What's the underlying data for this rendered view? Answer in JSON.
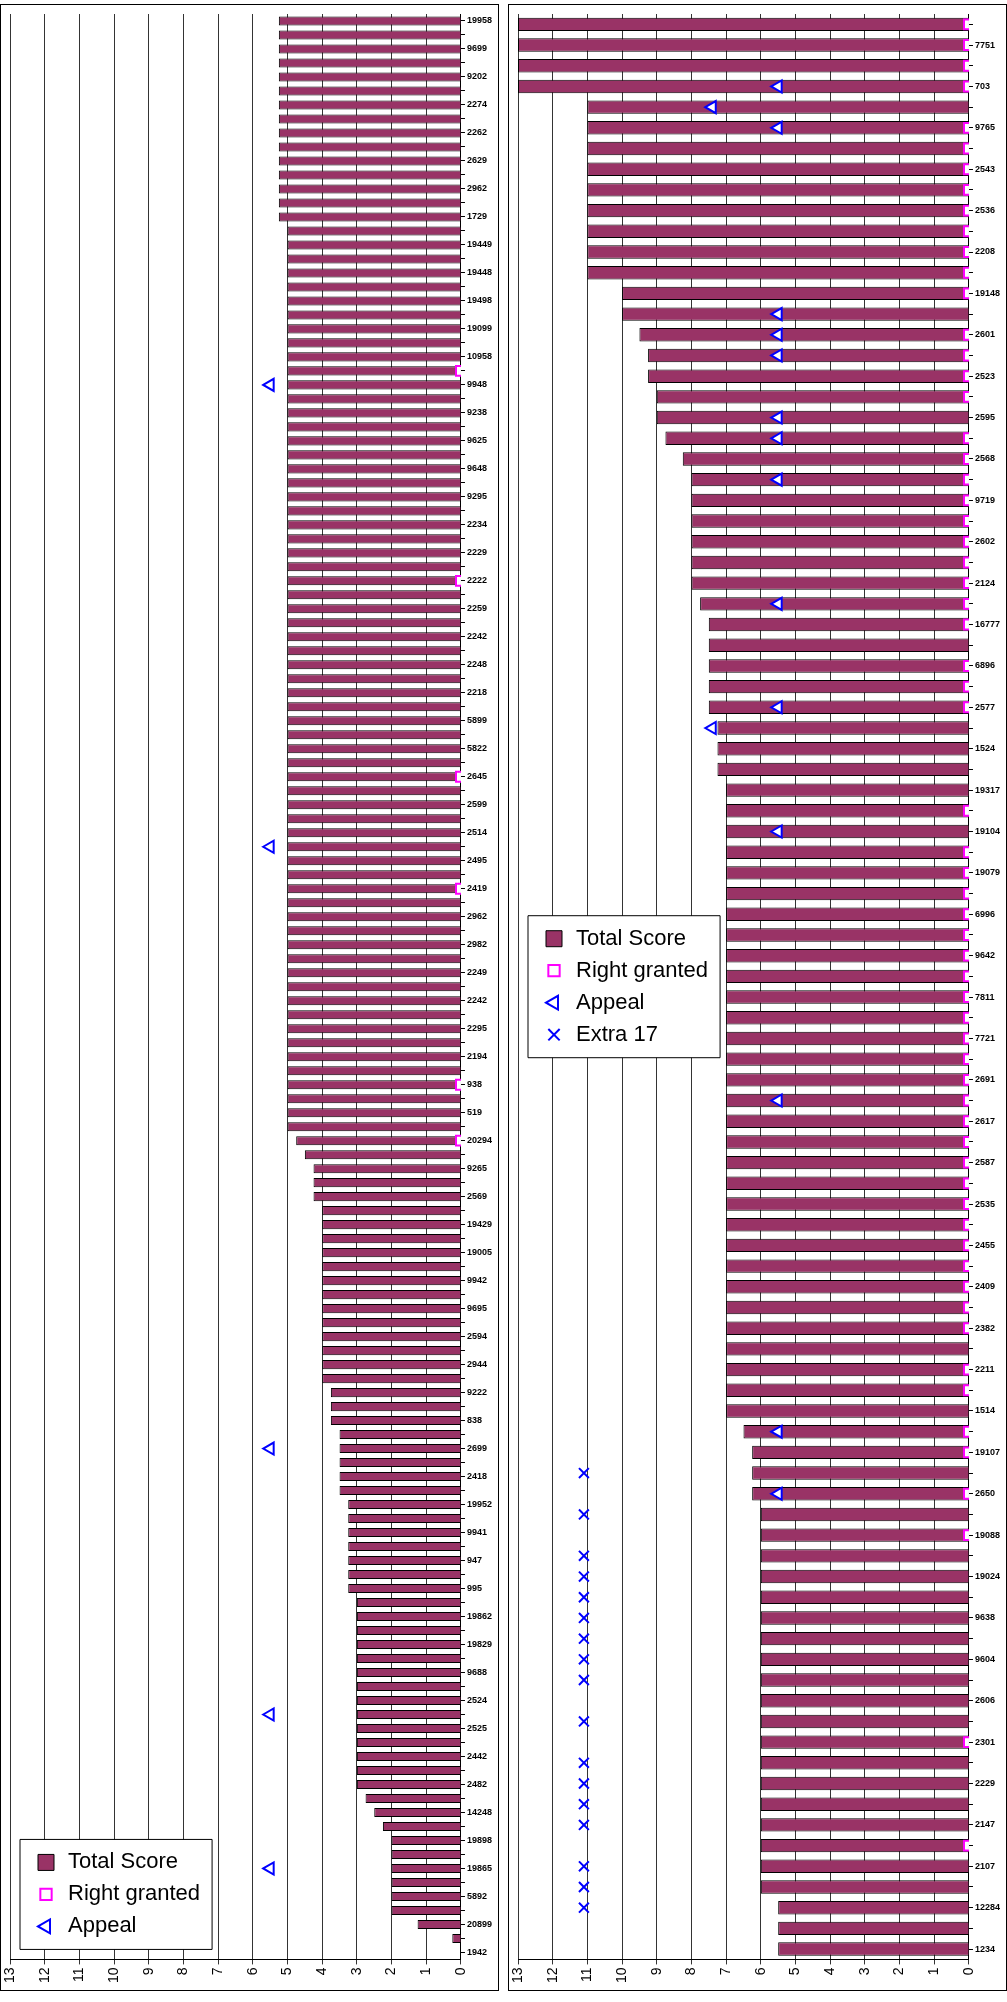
{
  "chart_data": [
    {
      "type": "bar",
      "orientation": "horizontal",
      "categories": [
        "19958",
        null,
        "9699",
        null,
        "9202",
        null,
        "2274",
        null,
        "2262",
        null,
        "2629",
        null,
        "2962",
        null,
        "1729",
        null,
        "19449",
        null,
        "19448",
        null,
        "19498",
        null,
        "19099",
        null,
        "10958",
        null,
        "9948",
        null,
        "9238",
        null,
        "9625",
        null,
        "9648",
        null,
        "9295",
        null,
        "2234",
        null,
        "2229",
        null,
        "2222",
        null,
        "2259",
        null,
        "2242",
        null,
        "2248",
        null,
        "2218",
        null,
        "5899",
        null,
        "5822",
        null,
        "2645",
        null,
        "2599",
        null,
        "2514",
        null,
        "2495",
        null,
        "2419",
        null,
        "2962",
        null,
        "2982",
        null,
        "2249",
        null,
        "2242",
        null,
        "2295",
        null,
        "2194",
        null,
        "938",
        null,
        "519",
        null,
        "20294",
        null,
        "9265",
        null,
        "2569",
        null,
        "19429",
        null,
        "19005",
        null,
        "9942",
        null,
        "9695",
        null,
        "2594",
        null,
        "2944",
        null,
        "9222",
        null,
        "838",
        null,
        "2699",
        null,
        "2418",
        null,
        "19952",
        null,
        "9941",
        null,
        "947",
        null,
        "995",
        null,
        "19862",
        null,
        "19829",
        null,
        "9688",
        null,
        "2524",
        null,
        "2525",
        null,
        "2442",
        null,
        "2482",
        null,
        "14248",
        null,
        "19898",
        null,
        "19865",
        null,
        "5892",
        null,
        "20899",
        null,
        "1942"
      ],
      "series": [
        {
          "name": "Total Score",
          "color": "#993366",
          "values": [
            5.25,
            5.25,
            5.25,
            5.25,
            5.25,
            5.25,
            5.25,
            5.25,
            5.25,
            5.25,
            5.25,
            5.25,
            5.25,
            5.25,
            5.25,
            5,
            5,
            5,
            5,
            5,
            5,
            5,
            5,
            5,
            5,
            5,
            5,
            5,
            5,
            5,
            5,
            5,
            5,
            5,
            5,
            5,
            5,
            5,
            5,
            5,
            5,
            5,
            5,
            5,
            5,
            5,
            5,
            5,
            5,
            5,
            5,
            5,
            5,
            5,
            5,
            5,
            5,
            5,
            5,
            5,
            5,
            5,
            5,
            5,
            5,
            5,
            5,
            5,
            5,
            5,
            5,
            5,
            5,
            5,
            5,
            5,
            5,
            5,
            5,
            5,
            4.75,
            4.5,
            4.25,
            4.25,
            4.25,
            4,
            4,
            4,
            4,
            4,
            4,
            4,
            4,
            4,
            4,
            4,
            4,
            4,
            3.75,
            3.75,
            3.75,
            3.5,
            3.5,
            3.5,
            3.5,
            3.5,
            3.25,
            3.25,
            3.25,
            3.25,
            3.25,
            3.25,
            3.25,
            3,
            3,
            3,
            3,
            3,
            3,
            3,
            3,
            3,
            3,
            3,
            3,
            3,
            3,
            2.75,
            2.5,
            2.25,
            2,
            2,
            2,
            2,
            2,
            2,
            1.25,
            0.25,
            0
          ]
        },
        {
          "name": "Right granted",
          "type": "scatter",
          "marker": "square",
          "color": "#ff00ff",
          "values": [
            null,
            null,
            null,
            null,
            null,
            null,
            null,
            null,
            null,
            null,
            null,
            null,
            null,
            null,
            null,
            null,
            null,
            null,
            null,
            null,
            null,
            null,
            null,
            null,
            null,
            0,
            null,
            null,
            null,
            null,
            null,
            null,
            null,
            null,
            null,
            null,
            null,
            null,
            null,
            null,
            0,
            null,
            null,
            null,
            null,
            null,
            null,
            null,
            null,
            null,
            null,
            null,
            null,
            null,
            0,
            null,
            null,
            null,
            null,
            null,
            null,
            null,
            0,
            null,
            null,
            null,
            null,
            null,
            null,
            null,
            null,
            null,
            null,
            null,
            null,
            null,
            0,
            null,
            null,
            null,
            0,
            null,
            null,
            null,
            null,
            null,
            null,
            null,
            null,
            null,
            null,
            null,
            null,
            null,
            null,
            null,
            null,
            null,
            null,
            null,
            null,
            null,
            null,
            null,
            null,
            null,
            null,
            null,
            null,
            null,
            null,
            null,
            null,
            null,
            null,
            null,
            null,
            null,
            null,
            null,
            null,
            null,
            null,
            null,
            null,
            null,
            null,
            null,
            null,
            null,
            null,
            null,
            null,
            null,
            null,
            null,
            null,
            null,
            null
          ]
        },
        {
          "name": "Appeal",
          "type": "scatter",
          "marker": "triangle",
          "color": "#0000ff",
          "values": [
            null,
            null,
            null,
            null,
            null,
            null,
            null,
            null,
            null,
            null,
            null,
            null,
            null,
            null,
            null,
            null,
            null,
            null,
            null,
            null,
            null,
            null,
            null,
            null,
            null,
            null,
            5.5,
            null,
            null,
            null,
            null,
            null,
            null,
            null,
            null,
            null,
            null,
            null,
            null,
            null,
            null,
            null,
            null,
            null,
            null,
            null,
            null,
            null,
            null,
            null,
            null,
            null,
            null,
            null,
            null,
            null,
            null,
            null,
            null,
            5.5,
            null,
            null,
            null,
            null,
            null,
            null,
            null,
            null,
            null,
            null,
            null,
            null,
            null,
            null,
            null,
            null,
            null,
            null,
            null,
            null,
            null,
            null,
            null,
            null,
            null,
            null,
            null,
            null,
            null,
            null,
            null,
            null,
            null,
            null,
            null,
            null,
            null,
            null,
            null,
            null,
            null,
            null,
            5.5,
            null,
            null,
            null,
            null,
            null,
            null,
            null,
            null,
            null,
            null,
            null,
            null,
            null,
            null,
            null,
            null,
            null,
            null,
            5.5,
            null,
            null,
            null,
            null,
            null,
            null,
            null,
            null,
            null,
            null,
            5.5,
            null,
            null,
            null,
            null,
            null,
            null
          ]
        }
      ],
      "xlim": [
        13,
        0
      ],
      "xticks": [
        0,
        1,
        2,
        3,
        4,
        5,
        6,
        7,
        8,
        9,
        10,
        11,
        12,
        13
      ],
      "grid": "x",
      "legend": "bottom left"
    },
    {
      "type": "bar",
      "orientation": "horizontal",
      "categories": [
        null,
        "7751",
        null,
        "703",
        null,
        "9765",
        null,
        "2543",
        null,
        "2536",
        null,
        "2208",
        null,
        "19148",
        null,
        "2601",
        null,
        "2523",
        null,
        "2595",
        null,
        "2568",
        null,
        "9719",
        null,
        "2602",
        null,
        "2124",
        null,
        "16777",
        null,
        "6896",
        null,
        "2577",
        null,
        "1524",
        null,
        "19317",
        null,
        "19104",
        null,
        "19079",
        null,
        "6996",
        null,
        "9642",
        null,
        "7811",
        null,
        "7721",
        null,
        "2691",
        null,
        "2617",
        null,
        "2587",
        null,
        "2535",
        null,
        "2455",
        null,
        "2409",
        null,
        "2382",
        null,
        "2211",
        null,
        "1514",
        null,
        "19107",
        null,
        "2650",
        null,
        "19088",
        null,
        "19024",
        null,
        "9638",
        null,
        "9604",
        null,
        "2606",
        null,
        "2301",
        null,
        "2229",
        null,
        "2147",
        null,
        "2107",
        null,
        "12284",
        null,
        "1234"
      ],
      "series": [
        {
          "name": "Total Score",
          "color": "#993366",
          "values": [
            13,
            13,
            13,
            13,
            11,
            11,
            11,
            11,
            11,
            11,
            11,
            11,
            11,
            10,
            10,
            9.5,
            9.25,
            9.25,
            9,
            9,
            8.75,
            8.25,
            8,
            8,
            8,
            8,
            8,
            8,
            7.75,
            7.5,
            7.5,
            7.5,
            7.5,
            7.5,
            7.25,
            7.25,
            7.25,
            7,
            7,
            7,
            7,
            7,
            7,
            7,
            7,
            7,
            7,
            7,
            7,
            7,
            7,
            7,
            7,
            7,
            7,
            7,
            7,
            7,
            7,
            7,
            7,
            7,
            7,
            7,
            7,
            7,
            7,
            7,
            6.5,
            6.25,
            6.25,
            6.25,
            6,
            6,
            6,
            6,
            6,
            6,
            6,
            6,
            6,
            6,
            6,
            6,
            6,
            6,
            6,
            6,
            6,
            6,
            6,
            5.5,
            5.5,
            5.5
          ]
        },
        {
          "name": "Right granted",
          "type": "scatter",
          "marker": "square",
          "color": "#ff00ff",
          "values": [
            0,
            0,
            0,
            0,
            null,
            0,
            0,
            0,
            0,
            0,
            0,
            0,
            0,
            0,
            null,
            0,
            0,
            0,
            0,
            null,
            0,
            0,
            0,
            0,
            0,
            0,
            0,
            0,
            0,
            0,
            null,
            0,
            0,
            0,
            null,
            null,
            null,
            null,
            0,
            null,
            0,
            0,
            0,
            0,
            0,
            0,
            0,
            0,
            0,
            0,
            0,
            0,
            0,
            0,
            0,
            0,
            0,
            0,
            0,
            0,
            0,
            0,
            0,
            0,
            null,
            0,
            0,
            null,
            0,
            0,
            null,
            0,
            null,
            0,
            null,
            null,
            null,
            null,
            null,
            null,
            null,
            null,
            null,
            0,
            null,
            null,
            null,
            null,
            0,
            null,
            null,
            null,
            null,
            null
          ]
        },
        {
          "name": "Appeal",
          "type": "scatter",
          "marker": "triangle",
          "color": "#0000ff",
          "values": [
            null,
            null,
            null,
            5.5,
            7.4,
            5.5,
            null,
            null,
            null,
            null,
            null,
            null,
            null,
            null,
            5.5,
            5.5,
            5.5,
            null,
            null,
            5.5,
            5.5,
            null,
            5.5,
            null,
            null,
            null,
            null,
            null,
            5.5,
            null,
            null,
            null,
            null,
            5.5,
            7.4,
            null,
            null,
            null,
            null,
            5.5,
            null,
            null,
            null,
            null,
            null,
            null,
            null,
            null,
            null,
            null,
            null,
            null,
            5.5,
            null,
            null,
            null,
            null,
            null,
            null,
            null,
            null,
            null,
            null,
            null,
            null,
            null,
            null,
            null,
            5.5,
            null,
            null,
            5.5,
            null,
            null,
            null,
            null,
            null,
            null,
            null,
            null,
            null,
            null,
            null,
            null,
            null,
            null,
            null,
            null,
            null,
            null,
            null,
            null,
            null,
            null
          ]
        },
        {
          "name": "Extra 17",
          "type": "scatter",
          "marker": "cross",
          "color": "#0000ff",
          "values": [
            null,
            null,
            null,
            null,
            null,
            null,
            null,
            null,
            null,
            null,
            null,
            null,
            null,
            null,
            null,
            null,
            null,
            null,
            null,
            null,
            null,
            null,
            null,
            null,
            null,
            null,
            null,
            null,
            null,
            null,
            null,
            null,
            null,
            null,
            null,
            null,
            null,
            null,
            null,
            null,
            null,
            null,
            null,
            null,
            null,
            null,
            null,
            null,
            null,
            null,
            null,
            null,
            null,
            null,
            null,
            null,
            null,
            null,
            null,
            null,
            null,
            null,
            null,
            null,
            null,
            null,
            null,
            null,
            null,
            null,
            11.1,
            null,
            11.1,
            null,
            11.1,
            11.1,
            11.1,
            11.1,
            11.1,
            11.1,
            11.1,
            null,
            11.1,
            null,
            11.1,
            11.1,
            11.1,
            11.1,
            null,
            11.1,
            11.1,
            11.1,
            null,
            null
          ]
        }
      ],
      "xlim": [
        13,
        0
      ],
      "xticks": [
        0,
        1,
        2,
        3,
        4,
        5,
        6,
        7,
        8,
        9,
        10,
        11,
        12,
        13
      ],
      "grid": "x",
      "legend": "left"
    }
  ]
}
